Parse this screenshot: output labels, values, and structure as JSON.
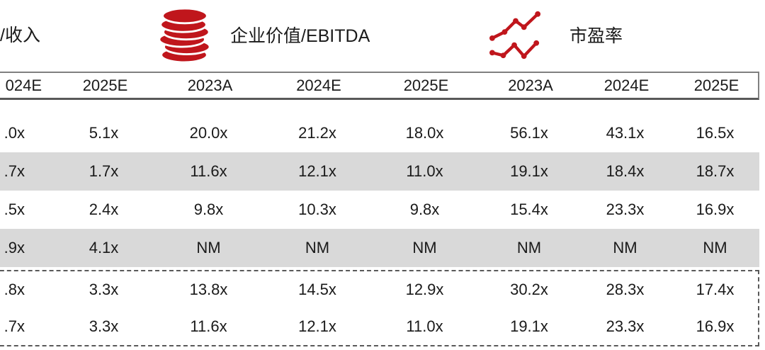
{
  "legend": {
    "revenue_label": "/收入",
    "ebitda_label": "企业价值/EBITDA",
    "pe_label": "市盈率",
    "ebitda_icon": "coins-icon",
    "pe_icon": "line-chart-icon"
  },
  "colors": {
    "accent_red": "#C0161C",
    "band_gray": "#D9D9D9",
    "border_gray": "#808080",
    "border_dark": "#595959",
    "text": "#1A1A1A"
  },
  "table": {
    "columns": [
      "024E",
      "2025E",
      "2023A",
      "2024E",
      "2025E",
      "2023A",
      "2024E",
      "2025E"
    ],
    "rows": [
      {
        "section": "main",
        "shaded": false,
        "values": [
          ".0x",
          "5.1x",
          "20.0x",
          "21.2x",
          "18.0x",
          "56.1x",
          "43.1x",
          "16.5x"
        ]
      },
      {
        "section": "main",
        "shaded": true,
        "values": [
          ".7x",
          "1.7x",
          "11.6x",
          "12.1x",
          "11.0x",
          "19.1x",
          "18.4x",
          "18.7x"
        ]
      },
      {
        "section": "main",
        "shaded": false,
        "values": [
          ".5x",
          "2.4x",
          "9.8x",
          "10.3x",
          "9.8x",
          "15.4x",
          "23.3x",
          "16.9x"
        ]
      },
      {
        "section": "main",
        "shaded": true,
        "values": [
          ".9x",
          "4.1x",
          "NM",
          "NM",
          "NM",
          "NM",
          "NM",
          "NM"
        ]
      },
      {
        "section": "summary",
        "shaded": false,
        "values": [
          ".8x",
          "3.3x",
          "13.8x",
          "14.5x",
          "12.9x",
          "30.2x",
          "28.3x",
          "17.4x"
        ]
      },
      {
        "section": "summary",
        "shaded": false,
        "values": [
          ".7x",
          "3.3x",
          "11.6x",
          "12.1x",
          "11.0x",
          "19.1x",
          "23.3x",
          "16.9x"
        ]
      }
    ]
  }
}
